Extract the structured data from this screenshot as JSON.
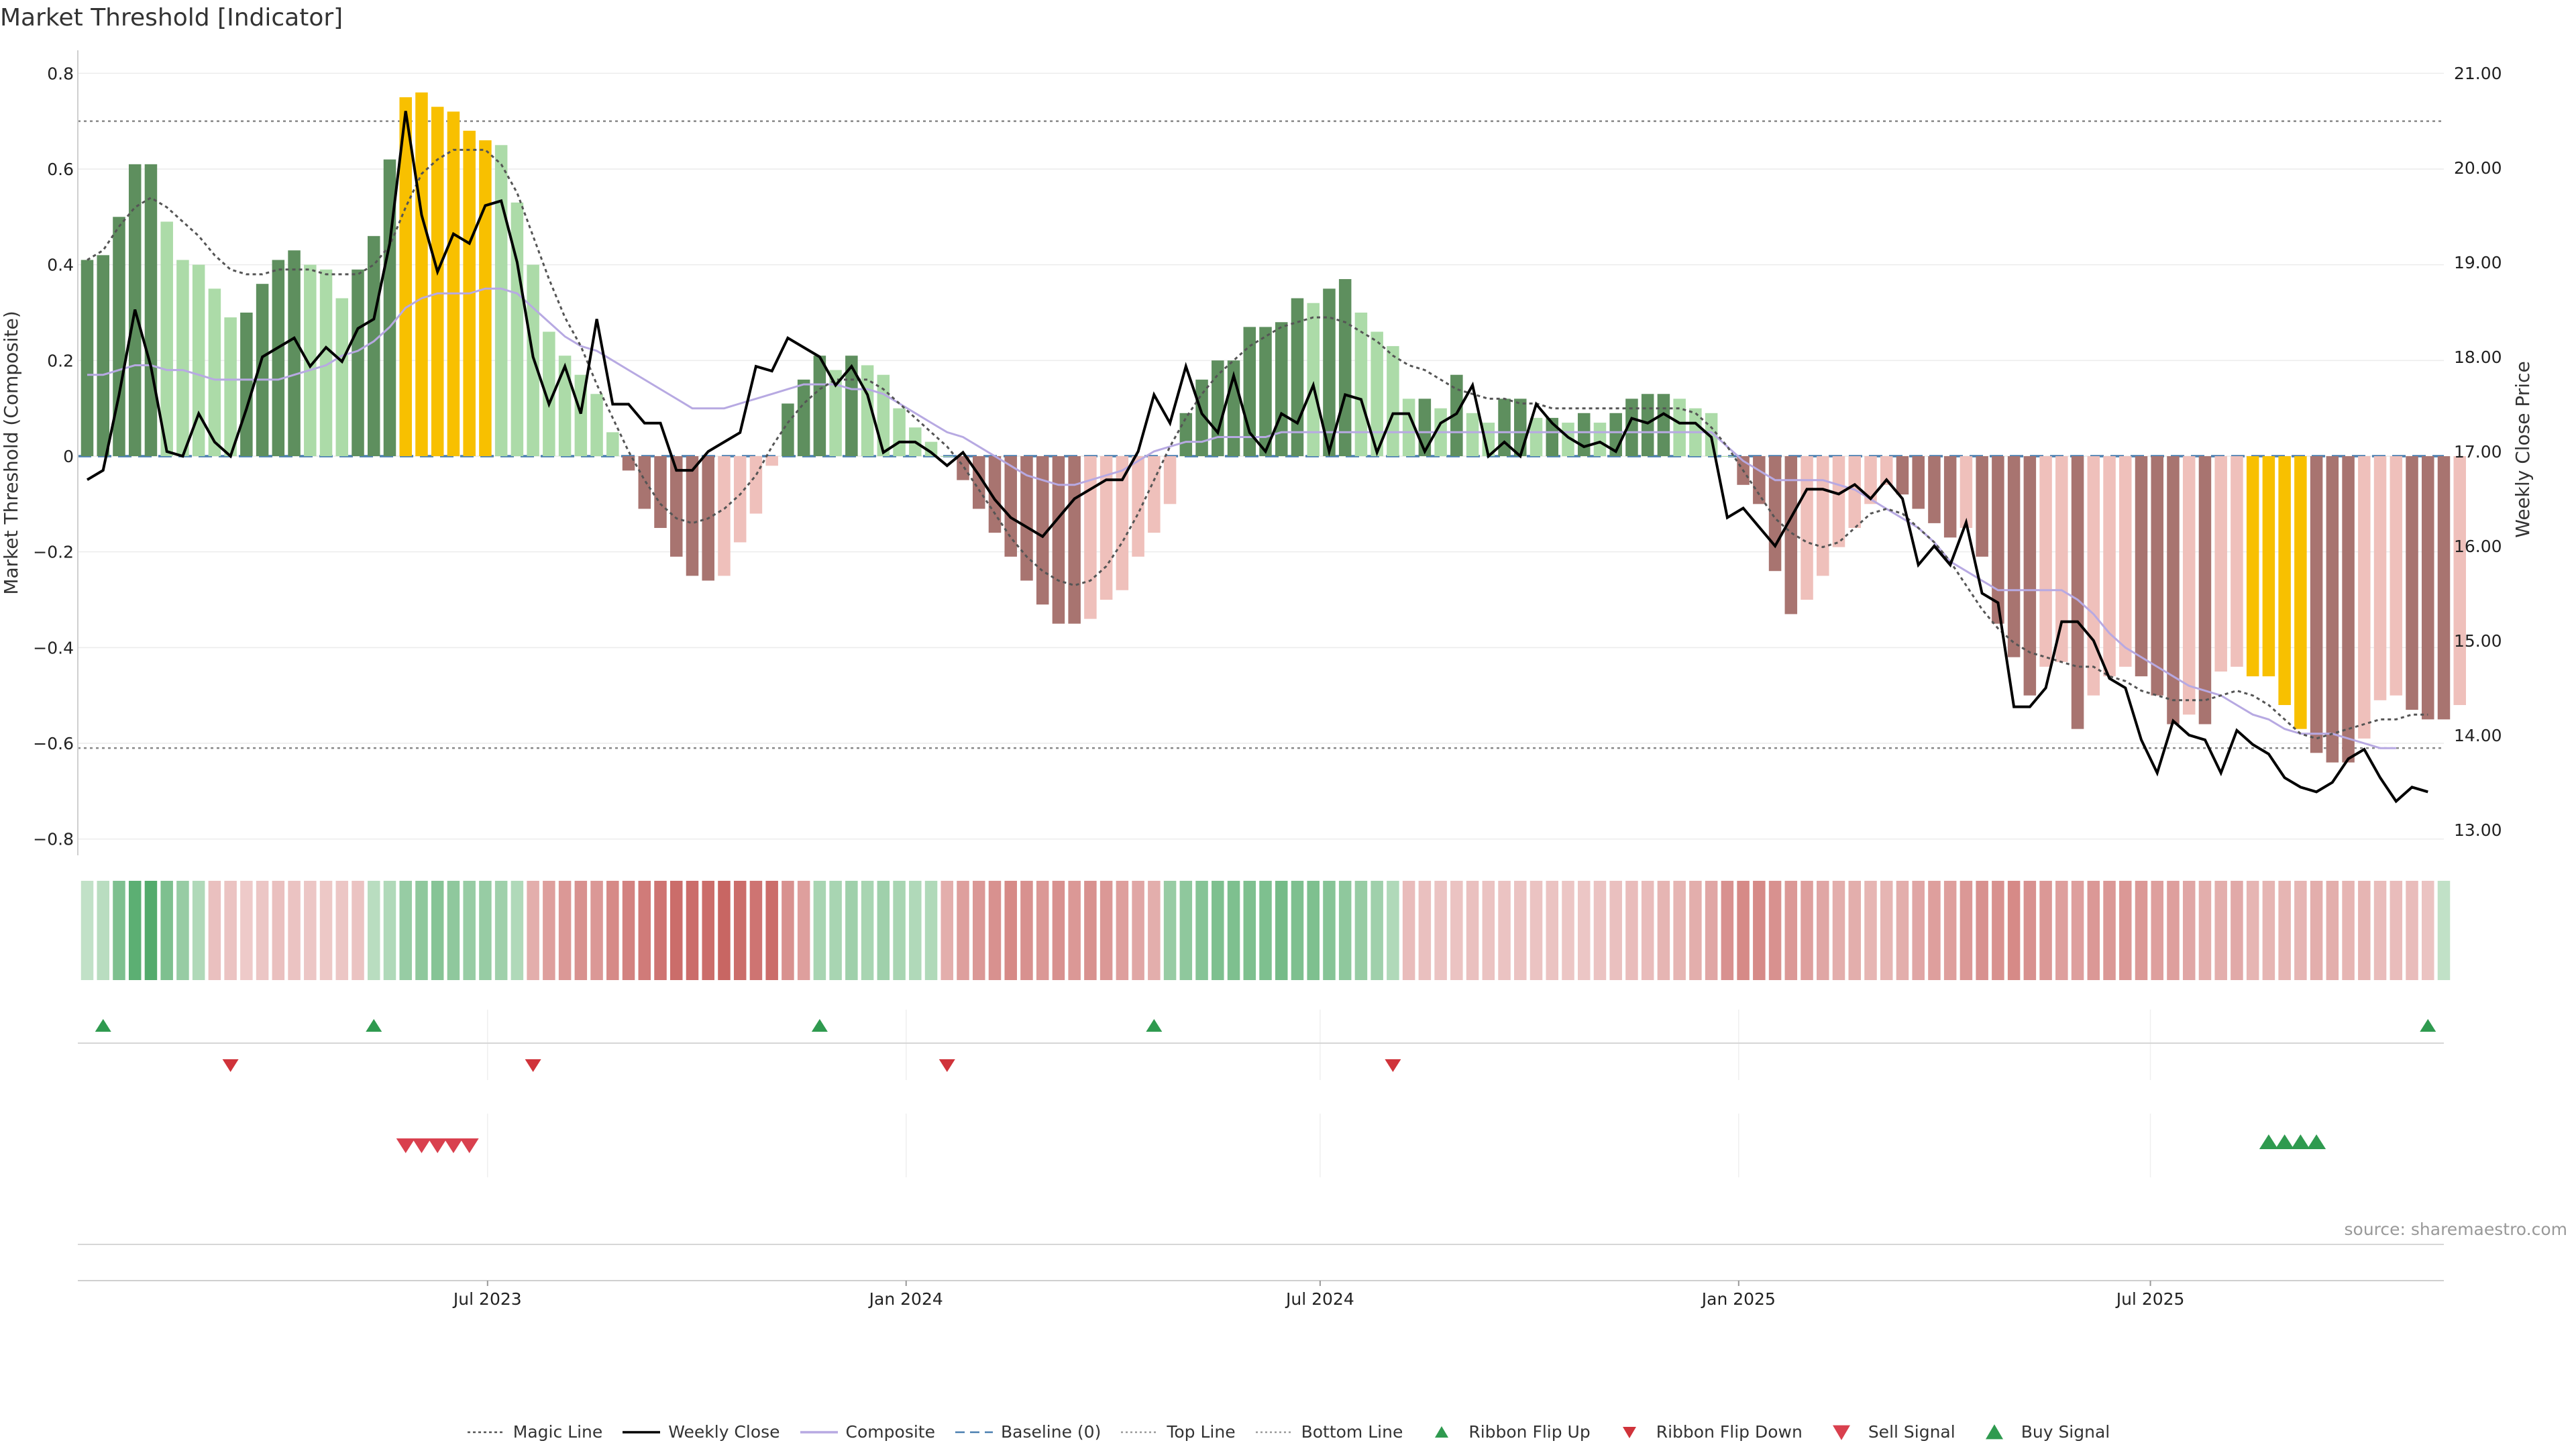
{
  "title": "Market Threshold [Indicator]",
  "source_text": "source: sharemaestro.com",
  "left_axis_label": "Market Threshold (Composite)",
  "right_axis_label": "Weekly Close Price",
  "legend": [
    {
      "label": "Magic Line",
      "icon": "line-dotted",
      "color": "#555555"
    },
    {
      "label": "Weekly Close",
      "icon": "line-solid",
      "color": "#000000"
    },
    {
      "label": "Composite",
      "icon": "line-solid",
      "color": "#b7a9e2"
    },
    {
      "label": "Baseline (0)",
      "icon": "line-dashed",
      "color": "#4a7fb0"
    },
    {
      "label": "Top Line",
      "icon": "line-dotted-light",
      "color": "#999999"
    },
    {
      "label": "Bottom Line",
      "icon": "line-dotted-light",
      "color": "#999999"
    },
    {
      "label": "Ribbon Flip Up",
      "icon": "triangle-up",
      "color": "#2f9a4f"
    },
    {
      "label": "Ribbon Flip Down",
      "icon": "triangle-down-small",
      "color": "#d0333a"
    },
    {
      "label": "Sell Signal",
      "icon": "triangle-down",
      "color": "#d9404e"
    },
    {
      "label": "Buy Signal",
      "icon": "triangle-up-large",
      "color": "#2f9a4f"
    }
  ],
  "colors": {
    "pos_dark": "#5e8f5e",
    "pos_light": "#acdba8",
    "neg_dark": "#a87470",
    "neg_light": "#efc0bb",
    "highlight": "#f8c000",
    "sell": "#d9404e",
    "buy": "#2f9a4f",
    "flip_up": "#2f9a4f",
    "flip_down": "#d0333a"
  },
  "chart_data": {
    "type": "bar",
    "title": "Market Threshold [Indicator]",
    "x_start": "2023-01-06",
    "x_frequency": "weekly",
    "x_ticks": [
      "Jul 2023",
      "Jan 2024",
      "Jul 2024",
      "Jan 2025",
      "Jul 2025"
    ],
    "x_tick_dates": [
      "2023-07-01",
      "2024-01-01",
      "2024-07-01",
      "2025-01-01",
      "2025-07-01"
    ],
    "x_range": [
      "2023-01-06",
      "2025-11-07"
    ],
    "y_left_label": "Market Threshold (Composite)",
    "y_left_range": [
      -0.82,
      0.82
    ],
    "y_left_ticks": [
      "0.8",
      "0.6",
      "0.4",
      "0.2",
      "0",
      "−0.2",
      "−0.4",
      "−0.6",
      "−0.8"
    ],
    "y_right_label": "Weekly Close Price",
    "y_right_range": [
      12.8,
      21.1
    ],
    "y_right_ticks": [
      "21.00",
      "20.00",
      "19.00",
      "18.00",
      "17.00",
      "16.00",
      "15.00",
      "14.00",
      "13.00"
    ],
    "top_line": 0.7,
    "bottom_line": -0.61,
    "baseline": 0,
    "bars": {
      "name": "Market Threshold (Composite)",
      "values": [
        0.41,
        0.42,
        0.5,
        0.61,
        0.61,
        0.49,
        0.41,
        0.4,
        0.35,
        0.29,
        0.3,
        0.36,
        0.41,
        0.43,
        0.4,
        0.39,
        0.33,
        0.39,
        0.46,
        0.62,
        0.75,
        0.76,
        0.73,
        0.72,
        0.68,
        0.66,
        0.65,
        0.53,
        0.4,
        0.26,
        0.21,
        0.17,
        0.13,
        0.05,
        -0.03,
        -0.11,
        -0.15,
        -0.21,
        -0.25,
        -0.26,
        -0.25,
        -0.18,
        -0.12,
        -0.02,
        0.11,
        0.16,
        0.21,
        0.18,
        0.21,
        0.19,
        0.17,
        0.1,
        0.06,
        0.03,
        0,
        -0.05,
        -0.11,
        -0.16,
        -0.21,
        -0.26,
        -0.31,
        -0.35,
        -0.35,
        -0.34,
        -0.3,
        -0.28,
        -0.21,
        -0.16,
        -0.1,
        0.09,
        0.16,
        0.2,
        0.2,
        0.27,
        0.27,
        0.28,
        0.33,
        0.32,
        0.35,
        0.37,
        0.3,
        0.26,
        0.23,
        0.12,
        0.12,
        0.1,
        0.17,
        0.09,
        0.07,
        0.12,
        0.12,
        0.08,
        0.08,
        0.07,
        0.09,
        0.07,
        0.09,
        0.12,
        0.13,
        0.13,
        0.12,
        0.1,
        0.09,
        0,
        -0.06,
        -0.1,
        -0.24,
        -0.33,
        -0.3,
        -0.25,
        -0.19,
        -0.15,
        -0.1,
        -0.06,
        -0.08,
        -0.11,
        -0.14,
        -0.17,
        -0.15,
        -0.21,
        -0.35,
        -0.42,
        -0.5,
        -0.44,
        -0.43,
        -0.57,
        -0.5,
        -0.46,
        -0.44,
        -0.46,
        -0.5,
        -0.56,
        -0.54,
        -0.56,
        -0.45,
        -0.44,
        -0.46,
        -0.46,
        -0.52,
        -0.57,
        -0.62,
        -0.64,
        -0.64,
        -0.59,
        -0.51,
        -0.5,
        -0.53,
        -0.55,
        -0.55,
        -0.52
      ],
      "highlighted_weeks": [
        20,
        21,
        22,
        23,
        24,
        25,
        136,
        137,
        138,
        139
      ]
    },
    "series": [
      {
        "name": "Weekly Close",
        "values": [
          16.7,
          16.8,
          17.6,
          18.5,
          17.9,
          17.0,
          16.95,
          17.4,
          17.1,
          16.95,
          17.45,
          18.0,
          18.1,
          18.2,
          17.9,
          18.1,
          17.95,
          18.3,
          18.4,
          19.2,
          20.6,
          19.5,
          18.9,
          19.3,
          19.2,
          19.6,
          19.65,
          19.0,
          18.0,
          17.5,
          17.9,
          17.4,
          18.4,
          17.5,
          17.5,
          17.3,
          17.3,
          16.8,
          16.8,
          17.0,
          17.1,
          17.2,
          17.9,
          17.85,
          18.2,
          18.1,
          18.0,
          17.7,
          17.9,
          17.6,
          16.99,
          17.1,
          17.1,
          16.99,
          16.85,
          16.99,
          16.75,
          16.49,
          16.3,
          16.2,
          16.1,
          16.3,
          16.5,
          16.6,
          16.7,
          16.7,
          17.0,
          17.6,
          17.3,
          17.9,
          17.4,
          17.2,
          17.8,
          17.2,
          17.0,
          17.4,
          17.3,
          17.7,
          17.0,
          17.6,
          17.55,
          16.99,
          17.4,
          17.4,
          17.0,
          17.3,
          17.4,
          17.7,
          16.95,
          17.1,
          16.95,
          17.5,
          17.3,
          17.15,
          17.05,
          17.1,
          17.0,
          17.35,
          17.3,
          17.4,
          17.3,
          17.3,
          17.15,
          16.3,
          16.4,
          16.2,
          16.0,
          16.3,
          16.6,
          16.6,
          16.55,
          16.65,
          16.5,
          16.7,
          16.5,
          15.8,
          16.0,
          15.8,
          16.25,
          15.5,
          15.4,
          14.3,
          14.3,
          14.5,
          15.2,
          15.2,
          15.0,
          14.6,
          14.5,
          13.95,
          13.6,
          14.15,
          14.0,
          13.95,
          13.6,
          14.05,
          13.9,
          13.8,
          13.55,
          13.45,
          13.4,
          13.5,
          13.75,
          13.85,
          13.55,
          13.3,
          13.45,
          13.4
        ]
      },
      {
        "name": "Magic Line",
        "values": [
          0.41,
          0.43,
          0.48,
          0.52,
          0.54,
          0.52,
          0.49,
          0.46,
          0.42,
          0.39,
          0.38,
          0.38,
          0.39,
          0.39,
          0.39,
          0.38,
          0.38,
          0.38,
          0.4,
          0.44,
          0.52,
          0.59,
          0.62,
          0.64,
          0.64,
          0.64,
          0.61,
          0.55,
          0.46,
          0.37,
          0.29,
          0.23,
          0.15,
          0.08,
          0.01,
          -0.05,
          -0.1,
          -0.13,
          -0.14,
          -0.13,
          -0.11,
          -0.08,
          -0.04,
          0.02,
          0.07,
          0.11,
          0.14,
          0.16,
          0.16,
          0.16,
          0.14,
          0.11,
          0.08,
          0.05,
          0.02,
          -0.02,
          -0.07,
          -0.12,
          -0.17,
          -0.21,
          -0.24,
          -0.26,
          -0.27,
          -0.26,
          -0.23,
          -0.18,
          -0.12,
          -0.05,
          0.02,
          0.08,
          0.13,
          0.17,
          0.2,
          0.23,
          0.25,
          0.27,
          0.28,
          0.29,
          0.29,
          0.28,
          0.26,
          0.24,
          0.21,
          0.19,
          0.18,
          0.16,
          0.14,
          0.13,
          0.12,
          0.12,
          0.11,
          0.11,
          0.1,
          0.1,
          0.1,
          0.1,
          0.1,
          0.1,
          0.1,
          0.1,
          0.1,
          0.09,
          0.06,
          0.02,
          -0.03,
          -0.08,
          -0.13,
          -0.16,
          -0.18,
          -0.19,
          -0.18,
          -0.15,
          -0.12,
          -0.11,
          -0.12,
          -0.15,
          -0.18,
          -0.22,
          -0.27,
          -0.32,
          -0.36,
          -0.39,
          -0.41,
          -0.42,
          -0.43,
          -0.44,
          -0.44,
          -0.46,
          -0.47,
          -0.49,
          -0.5,
          -0.51,
          -0.51,
          -0.51,
          -0.5,
          -0.49,
          -0.5,
          -0.52,
          -0.55,
          -0.58,
          -0.59,
          -0.58,
          -0.57,
          -0.56,
          -0.55,
          -0.55,
          -0.54,
          -0.54
        ]
      },
      {
        "name": "Composite",
        "values": [
          0.17,
          0.17,
          0.18,
          0.19,
          0.19,
          0.18,
          0.18,
          0.17,
          0.16,
          0.16,
          0.16,
          0.16,
          0.16,
          0.17,
          0.18,
          0.19,
          0.21,
          0.22,
          0.24,
          0.27,
          0.31,
          0.33,
          0.34,
          0.34,
          0.34,
          0.35,
          0.35,
          0.34,
          0.31,
          0.28,
          0.25,
          0.23,
          0.22,
          0.2,
          0.18,
          0.16,
          0.14,
          0.12,
          0.1,
          0.1,
          0.1,
          0.11,
          0.12,
          0.13,
          0.14,
          0.15,
          0.15,
          0.15,
          0.14,
          0.14,
          0.13,
          0.11,
          0.09,
          0.07,
          0.05,
          0.04,
          0.02,
          0,
          -0.02,
          -0.04,
          -0.05,
          -0.06,
          -0.06,
          -0.05,
          -0.04,
          -0.03,
          -0.01,
          0.01,
          0.02,
          0.03,
          0.03,
          0.04,
          0.04,
          0.04,
          0.04,
          0.05,
          0.05,
          0.05,
          0.05,
          0.05,
          0.05,
          0.05,
          0.05,
          0.05,
          0.05,
          0.05,
          0.05,
          0.05,
          0.05,
          0.05,
          0.05,
          0.05,
          0.05,
          0.05,
          0.05,
          0.05,
          0.05,
          0.05,
          0.05,
          0.05,
          0.05,
          0.05,
          0.05,
          0.02,
          -0.01,
          -0.03,
          -0.05,
          -0.05,
          -0.05,
          -0.05,
          -0.06,
          -0.07,
          -0.09,
          -0.11,
          -0.13,
          -0.15,
          -0.18,
          -0.22,
          -0.24,
          -0.26,
          -0.28,
          -0.28,
          -0.28,
          -0.28,
          -0.28,
          -0.3,
          -0.33,
          -0.37,
          -0.4,
          -0.42,
          -0.44,
          -0.46,
          -0.48,
          -0.49,
          -0.5,
          -0.52,
          -0.54,
          -0.55,
          -0.57,
          -0.58,
          -0.58,
          -0.58,
          -0.59,
          -0.6,
          -0.61,
          -0.61
        ]
      },
      {
        "name": "Ribbon (composite strength)",
        "values": [
          0.2,
          0.25,
          0.6,
          0.8,
          0.85,
          0.6,
          0.45,
          0.3,
          -0.22,
          -0.2,
          -0.15,
          -0.18,
          -0.22,
          -0.2,
          -0.18,
          -0.17,
          -0.18,
          -0.2,
          0.25,
          0.3,
          0.45,
          0.5,
          0.55,
          0.5,
          0.45,
          0.45,
          0.4,
          0.3,
          -0.35,
          -0.45,
          -0.5,
          -0.55,
          -0.5,
          -0.6,
          -0.65,
          -0.7,
          -0.75,
          -0.8,
          -0.8,
          -0.8,
          -0.85,
          -0.8,
          -0.75,
          -0.8,
          -0.55,
          -0.45,
          0.35,
          0.35,
          0.4,
          0.35,
          0.4,
          0.35,
          0.3,
          0.3,
          -0.35,
          -0.45,
          -0.5,
          -0.55,
          -0.6,
          -0.55,
          -0.5,
          -0.55,
          -0.5,
          -0.55,
          -0.5,
          -0.45,
          -0.4,
          -0.35,
          0.45,
          0.5,
          0.55,
          0.6,
          0.6,
          0.6,
          0.6,
          0.65,
          0.6,
          0.6,
          0.55,
          0.5,
          0.45,
          0.4,
          0.3,
          -0.25,
          -0.22,
          -0.2,
          -0.2,
          -0.22,
          -0.2,
          -0.2,
          -0.2,
          -0.2,
          -0.2,
          -0.18,
          -0.18,
          -0.2,
          -0.22,
          -0.25,
          -0.25,
          -0.3,
          -0.3,
          -0.35,
          -0.4,
          -0.55,
          -0.6,
          -0.6,
          -0.55,
          -0.5,
          -0.45,
          -0.4,
          -0.35,
          -0.35,
          -0.3,
          -0.3,
          -0.35,
          -0.4,
          -0.45,
          -0.45,
          -0.5,
          -0.55,
          -0.55,
          -0.6,
          -0.55,
          -0.5,
          -0.45,
          -0.45,
          -0.5,
          -0.5,
          -0.5,
          -0.5,
          -0.45,
          -0.45,
          -0.4,
          -0.35,
          -0.35,
          -0.38,
          -0.3,
          -0.3,
          -0.3,
          -0.3,
          -0.35,
          -0.35,
          -0.3,
          -0.3,
          -0.25,
          -0.25,
          -0.25,
          -0.2,
          0.2
        ]
      }
    ],
    "ribbon_flip_up_weeks": [
      1,
      18,
      46,
      67,
      147
    ],
    "ribbon_flip_down_weeks": [
      9,
      28,
      54,
      82
    ],
    "sell_signal_weeks": [
      20,
      21,
      22,
      23,
      24
    ],
    "buy_signal_weeks": [
      137,
      138,
      139,
      140
    ],
    "legend_position": "bottom"
  }
}
